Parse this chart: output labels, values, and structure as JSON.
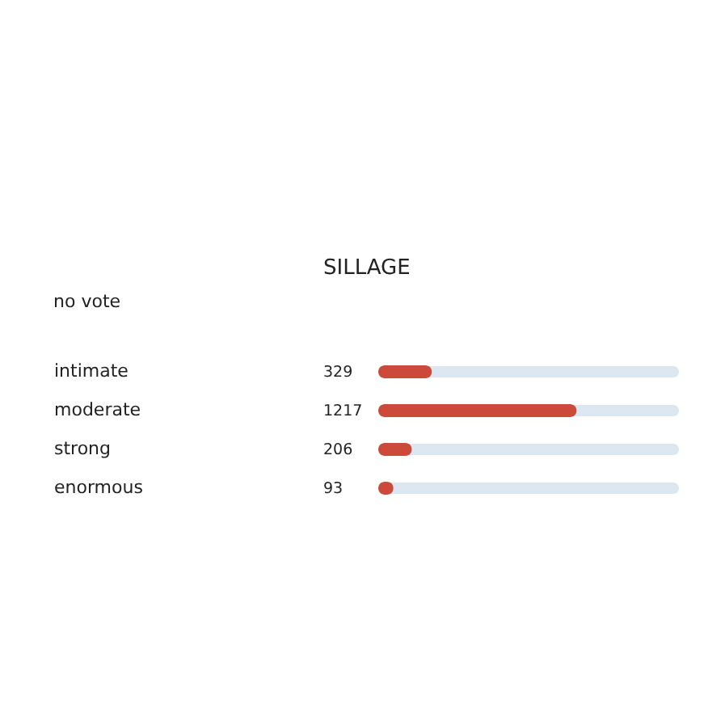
{
  "chart_data": {
    "type": "bar",
    "orientation": "horizontal",
    "title": "SILLAGE",
    "categories": [
      "intimate",
      "moderate",
      "strong",
      "enormous"
    ],
    "values": [
      329,
      1217,
      206,
      93
    ],
    "color": "#cb4a3a",
    "xlim": [
      0,
      1845
    ],
    "data_labels": true,
    "tick_labels": "y",
    "annotations": [
      "no vote"
    ]
  }
}
